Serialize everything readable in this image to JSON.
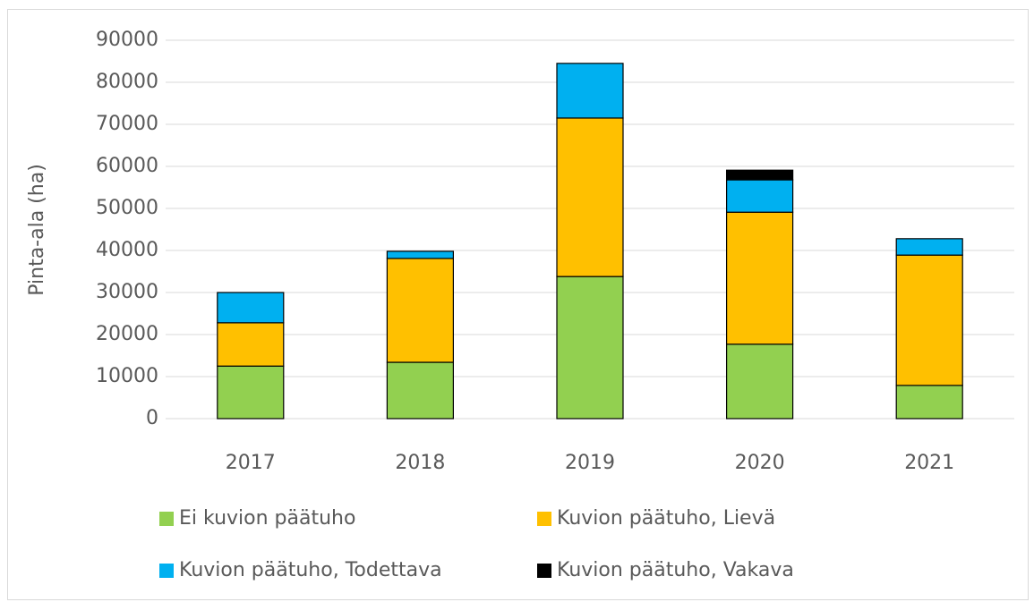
{
  "chart_data": {
    "type": "stacked_bar",
    "y_label": "Pinta-ala (ha)",
    "categories": [
      "2017",
      "2018",
      "2019",
      "2020",
      "2021"
    ],
    "series": [
      {
        "name": "Ei kuvion päätuho",
        "color": "#92d050",
        "values": [
          12500,
          13400,
          33800,
          17700,
          7900
        ]
      },
      {
        "name": "Kuvion päätuho, Lievä",
        "color": "#ffc000",
        "values": [
          10300,
          24700,
          37700,
          31400,
          31000
        ]
      },
      {
        "name": "Kuvion päätuho, Todettava",
        "color": "#00b0f0",
        "values": [
          7200,
          1700,
          13000,
          7700,
          3900
        ]
      },
      {
        "name": "Kuvion päätuho, Vakava",
        "color": "#000000",
        "values": [
          0,
          0,
          0,
          2300,
          0
        ]
      }
    ],
    "ylim": [
      0,
      90000
    ],
    "yticks": [
      0,
      10000,
      20000,
      30000,
      40000,
      50000,
      60000,
      70000,
      80000,
      90000
    ],
    "grid": true,
    "legend": "bottom"
  }
}
